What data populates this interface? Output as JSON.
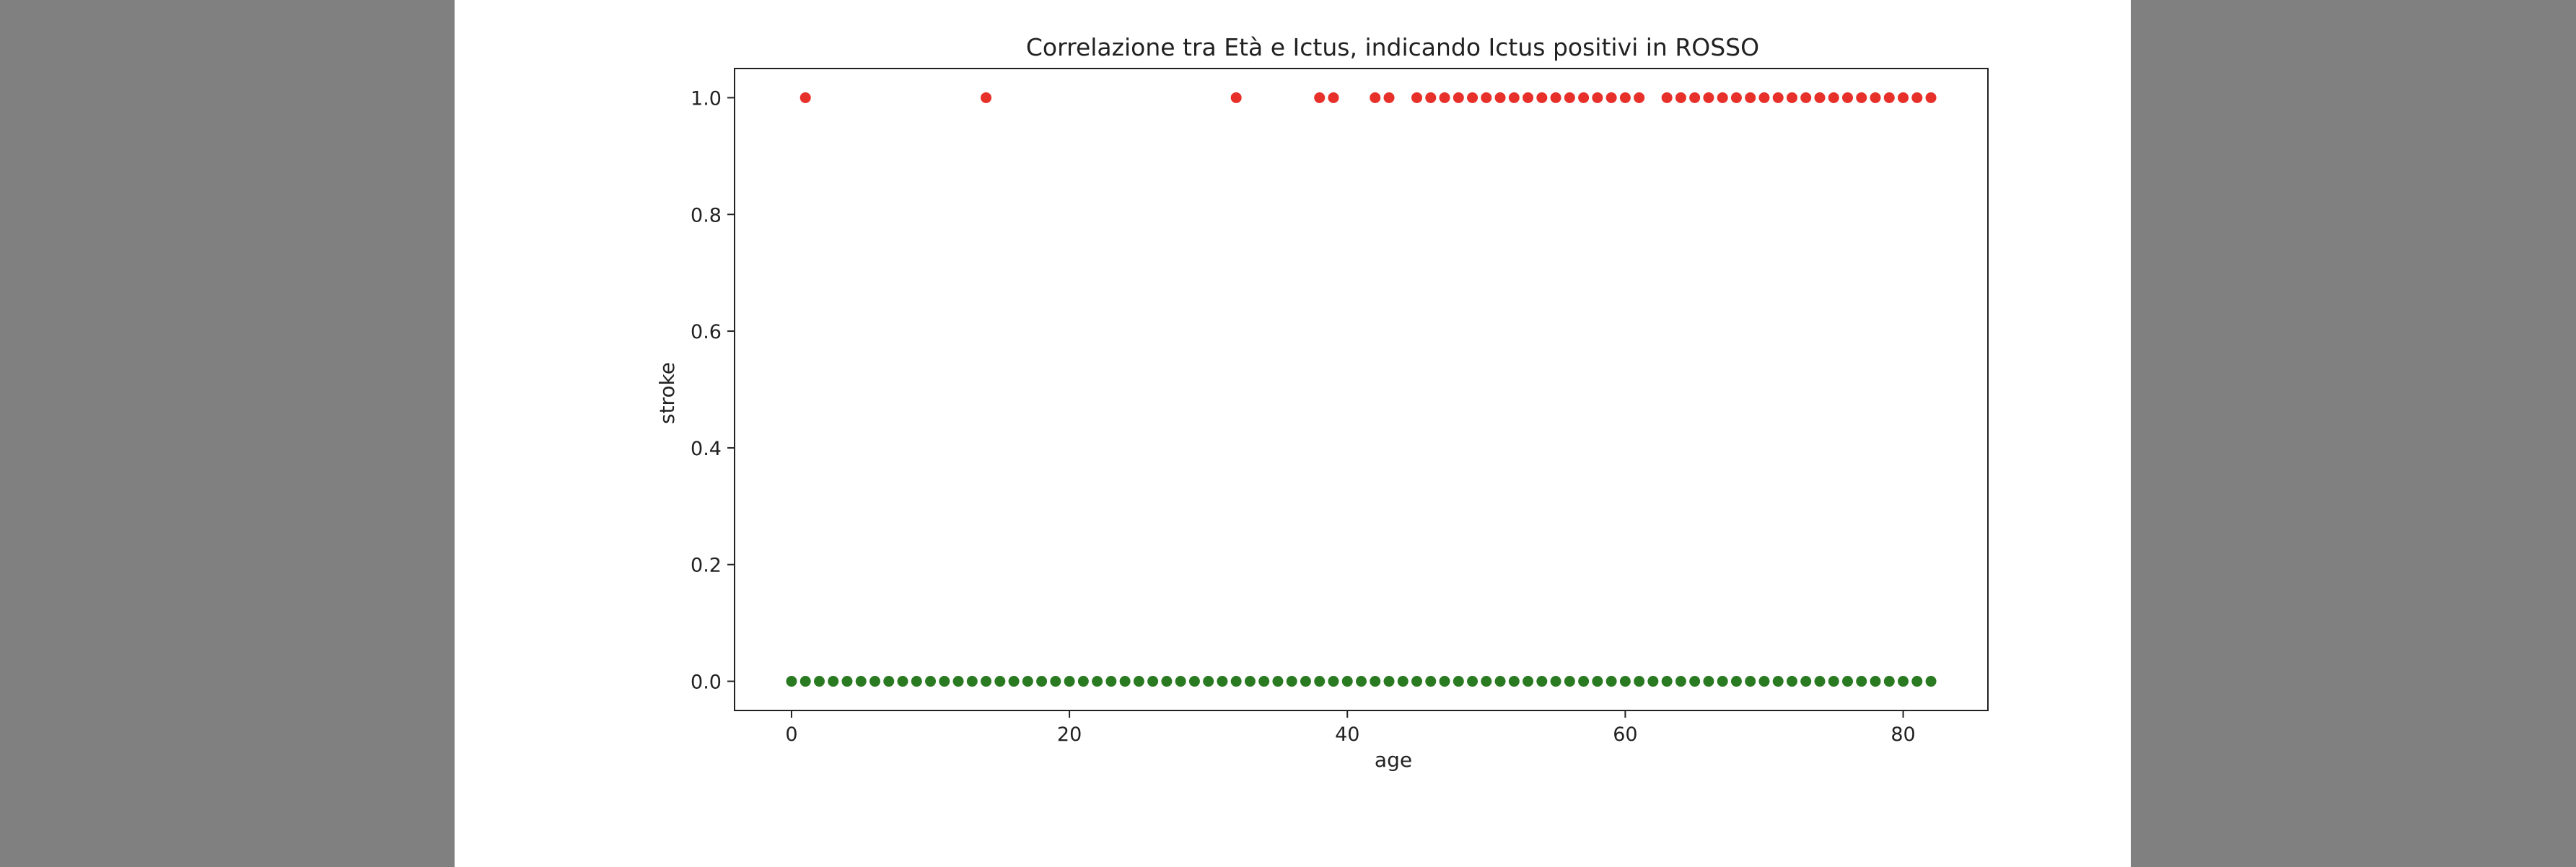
{
  "viewer": {
    "background_color": "#808080",
    "page_color": "#ffffff"
  },
  "chart_data": {
    "type": "scatter",
    "title": "Correlazione tra Età e Ictus, indicando Ictus positivi in ROSSO",
    "xlabel": "age",
    "ylabel": "stroke",
    "xlim": [
      -4.1,
      86.1
    ],
    "ylim": [
      -0.05,
      1.05
    ],
    "xticks": [
      0,
      20,
      40,
      60,
      80
    ],
    "xtick_labels": [
      "0",
      "20",
      "40",
      "60",
      "80"
    ],
    "yticks": [
      0.0,
      0.2,
      0.4,
      0.6,
      0.8,
      1.0
    ],
    "ytick_labels": [
      "0.0",
      "0.2",
      "0.4",
      "0.6",
      "0.8",
      "1.0"
    ],
    "grid": false,
    "legend": "none",
    "series": [
      {
        "color": "#e8302a",
        "y": 1,
        "x": [
          1,
          14,
          32,
          38,
          39,
          42,
          43,
          45,
          46,
          47,
          48,
          49,
          50,
          51,
          52,
          53,
          54,
          55,
          56,
          57,
          58,
          59,
          60,
          61,
          63,
          64,
          65,
          66,
          67,
          68,
          69,
          70,
          71,
          72,
          73,
          74,
          75,
          76,
          77,
          78,
          79,
          80,
          81,
          82
        ]
      },
      {
        "color": "#2a7a22",
        "y": 0,
        "x": [
          0,
          1,
          2,
          3,
          4,
          5,
          6,
          7,
          8,
          9,
          10,
          11,
          12,
          13,
          14,
          15,
          16,
          17,
          18,
          19,
          20,
          21,
          22,
          23,
          24,
          25,
          26,
          27,
          28,
          29,
          30,
          31,
          32,
          33,
          34,
          35,
          36,
          37,
          38,
          39,
          40,
          41,
          42,
          43,
          44,
          45,
          46,
          47,
          48,
          49,
          50,
          51,
          52,
          53,
          54,
          55,
          56,
          57,
          58,
          59,
          60,
          61,
          62,
          63,
          64,
          65,
          66,
          67,
          68,
          69,
          70,
          71,
          72,
          73,
          74,
          75,
          76,
          77,
          78,
          79,
          80,
          81,
          82
        ]
      }
    ]
  }
}
